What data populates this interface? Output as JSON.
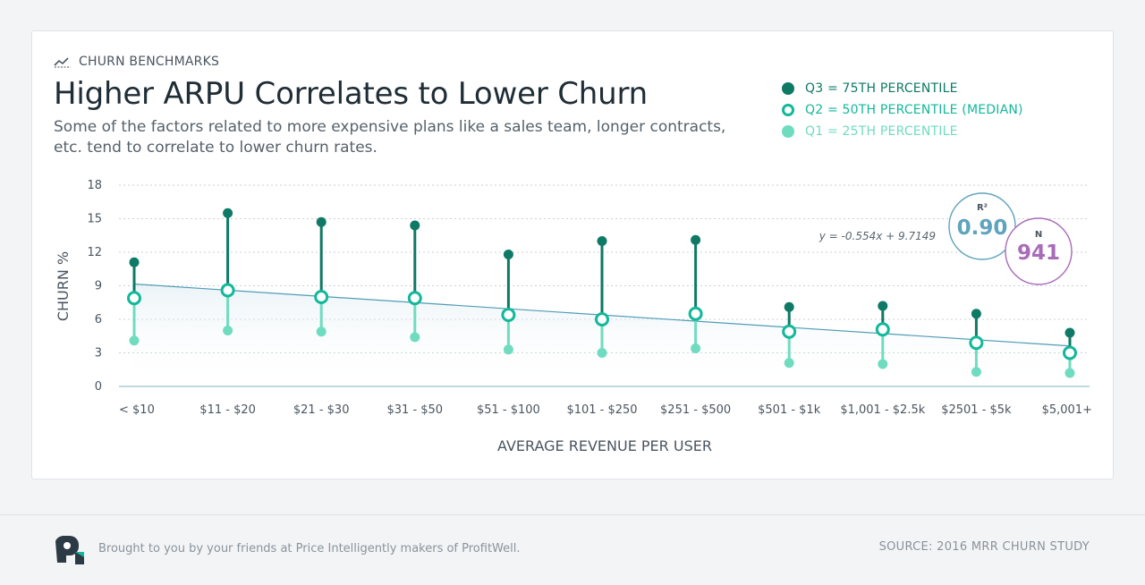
{
  "header": {
    "eyebrow": "CHURN BENCHMARKS",
    "title": "Higher ARPU Correlates to Lower Churn",
    "subtitle": "Some of the factors related to more expensive plans like a sales team, longer contracts, etc. tend to correlate to lower churn rates."
  },
  "legend": [
    {
      "label": "Q3 = 75TH PERCENTILE",
      "color": "#0e7a66",
      "style": "filled"
    },
    {
      "label": "Q2 = 50TH PERCENTILE (MEDIAN)",
      "color": "#13b89a",
      "style": "hollow"
    },
    {
      "label": "Q1 = 25TH PERCENTILE",
      "color": "#6fdcc0",
      "style": "filled"
    }
  ],
  "stats": {
    "r2_label": "R²",
    "r2_value": "0.90",
    "n_label": "N",
    "n_value": "941",
    "r2_color": "#5fa3bd",
    "n_color": "#a86cb8"
  },
  "chart_data": {
    "type": "scatter",
    "title": "Higher ARPU Correlates to Lower Churn",
    "xlabel": "AVERAGE REVENUE PER USER",
    "ylabel": "CHURN %",
    "ylim": [
      0,
      18
    ],
    "yticks": [
      0,
      3,
      6,
      9,
      12,
      15,
      18
    ],
    "grid": true,
    "categories": [
      "< $10",
      "$11 - $20",
      "$21 - $30",
      "$31 - $50",
      "$51 - $100",
      "$101 - $250",
      "$251 - $500",
      "$501 - $1k",
      "$1,001 - $2.5k",
      "$2501 - $5k",
      "$5,001+"
    ],
    "series": [
      {
        "name": "Q3 = 75TH PERCENTILE",
        "values": [
          11.1,
          15.5,
          14.7,
          14.4,
          11.8,
          13.0,
          13.1,
          7.1,
          7.2,
          6.5,
          4.8
        ]
      },
      {
        "name": "Q2 = 50TH PERCENTILE (MEDIAN)",
        "values": [
          7.9,
          8.6,
          8.0,
          7.9,
          6.4,
          6.0,
          6.5,
          4.9,
          5.1,
          3.9,
          3.0
        ]
      },
      {
        "name": "Q1 = 25TH PERCENTILE",
        "values": [
          4.1,
          5.0,
          4.9,
          4.4,
          3.3,
          3.0,
          3.4,
          2.1,
          2.0,
          1.3,
          1.2
        ]
      }
    ],
    "trendline": {
      "equation": "y = -0.554x + 9.7149",
      "slope": -0.554,
      "intercept": 9.7149
    }
  },
  "footer": {
    "credit": "Brought to you by your friends at Price Intelligently makers of ProfitWell.",
    "source": "SOURCE: 2016 MRR CHURN STUDY"
  }
}
